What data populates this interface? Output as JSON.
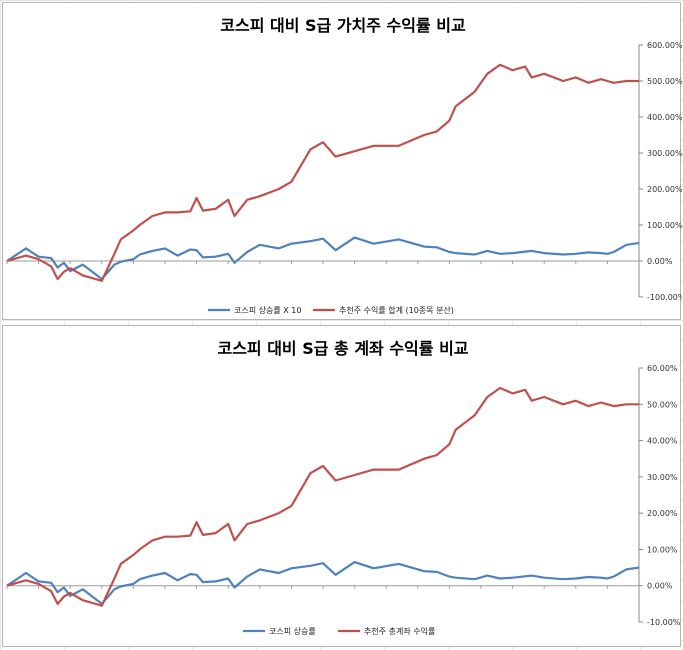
{
  "chart_data": [
    {
      "type": "line",
      "title": "코스피 대비 S급 가치주 수익률 비교",
      "y_axis_side": "right",
      "ylim": [
        -100,
        600
      ],
      "yticks": [
        "600.00%",
        "500.00%",
        "400.00%",
        "300.00%",
        "200.00%",
        "100.00%",
        "0.00%",
        "-100.00%"
      ],
      "grid": false,
      "legend_position": "bottom",
      "x": [
        0,
        3,
        5,
        7,
        8,
        9,
        10,
        12,
        15,
        17,
        18,
        20,
        21,
        23,
        25,
        27,
        29,
        30,
        31,
        33,
        35,
        36,
        38,
        40,
        43,
        45,
        48,
        50,
        52,
        55,
        58,
        62,
        66,
        68,
        70,
        71,
        74,
        76,
        78,
        80,
        82,
        83,
        85,
        88,
        90,
        92,
        94,
        95,
        96,
        98,
        100
      ],
      "series": [
        {
          "name": "코스피 상승률 X 10",
          "color": "#4f81bd",
          "values": [
            0,
            35,
            12,
            8,
            -18,
            -5,
            -28,
            -10,
            -50,
            -10,
            -2,
            5,
            18,
            28,
            35,
            15,
            32,
            30,
            10,
            12,
            20,
            -5,
            25,
            45,
            35,
            48,
            55,
            62,
            30,
            65,
            48,
            60,
            40,
            38,
            25,
            22,
            18,
            28,
            20,
            22,
            26,
            28,
            22,
            18,
            20,
            24,
            22,
            20,
            25,
            45,
            50
          ]
        },
        {
          "name": "추천주 수익률 합계 (10종목 분산)",
          "color": "#c0504d",
          "values": [
            0,
            15,
            5,
            -15,
            -50,
            -30,
            -20,
            -40,
            -55,
            20,
            60,
            85,
            100,
            125,
            135,
            135,
            138,
            175,
            140,
            145,
            170,
            125,
            170,
            180,
            200,
            220,
            310,
            330,
            290,
            305,
            320,
            320,
            350,
            360,
            390,
            430,
            470,
            520,
            545,
            530,
            540,
            510,
            520,
            500,
            510,
            495,
            505,
            500,
            495,
            500,
            500
          ]
        }
      ]
    },
    {
      "type": "line",
      "title": "코스피 대비 S급 총 계좌 수익률 비교",
      "y_axis_side": "right",
      "ylim": [
        -10,
        60
      ],
      "yticks": [
        "60.00%",
        "50.00%",
        "40.00%",
        "30.00%",
        "20.00%",
        "10.00%",
        "0.00%",
        "-10.00%"
      ],
      "grid": false,
      "legend_position": "bottom",
      "x": [
        0,
        3,
        5,
        7,
        8,
        9,
        10,
        12,
        15,
        17,
        18,
        20,
        21,
        23,
        25,
        27,
        29,
        30,
        31,
        33,
        35,
        36,
        38,
        40,
        43,
        45,
        48,
        50,
        52,
        55,
        58,
        62,
        66,
        68,
        70,
        71,
        74,
        76,
        78,
        80,
        82,
        83,
        85,
        88,
        90,
        92,
        94,
        95,
        96,
        98,
        100
      ],
      "series": [
        {
          "name": "코스피 상승률",
          "color": "#4f81bd",
          "values": [
            0,
            3.5,
            1.2,
            0.8,
            -1.8,
            -0.5,
            -2.8,
            -1.0,
            -5.0,
            -1.0,
            -0.2,
            0.5,
            1.8,
            2.8,
            3.5,
            1.5,
            3.2,
            3.0,
            1.0,
            1.2,
            2.0,
            -0.5,
            2.5,
            4.5,
            3.5,
            4.8,
            5.5,
            6.2,
            3.0,
            6.5,
            4.8,
            6.0,
            4.0,
            3.8,
            2.5,
            2.2,
            1.8,
            2.8,
            2.0,
            2.2,
            2.6,
            2.8,
            2.2,
            1.8,
            2.0,
            2.4,
            2.2,
            2.0,
            2.5,
            4.5,
            5.0
          ]
        },
        {
          "name": "추천주 총계좌 수익률",
          "color": "#c0504d",
          "values": [
            0,
            1.5,
            0.5,
            -1.5,
            -5.0,
            -3.0,
            -2.0,
            -4.0,
            -5.5,
            2.0,
            6.0,
            8.5,
            10.0,
            12.5,
            13.5,
            13.5,
            13.8,
            17.5,
            14.0,
            14.5,
            17.0,
            12.5,
            17.0,
            18.0,
            20.0,
            22.0,
            31.0,
            33.0,
            29.0,
            30.5,
            32.0,
            32.0,
            35.0,
            36.0,
            39.0,
            43.0,
            47.0,
            52.0,
            54.5,
            53.0,
            54.0,
            51.0,
            52.0,
            50.0,
            51.0,
            49.5,
            50.5,
            50.0,
            49.5,
            50.0,
            50.0
          ]
        }
      ]
    }
  ]
}
